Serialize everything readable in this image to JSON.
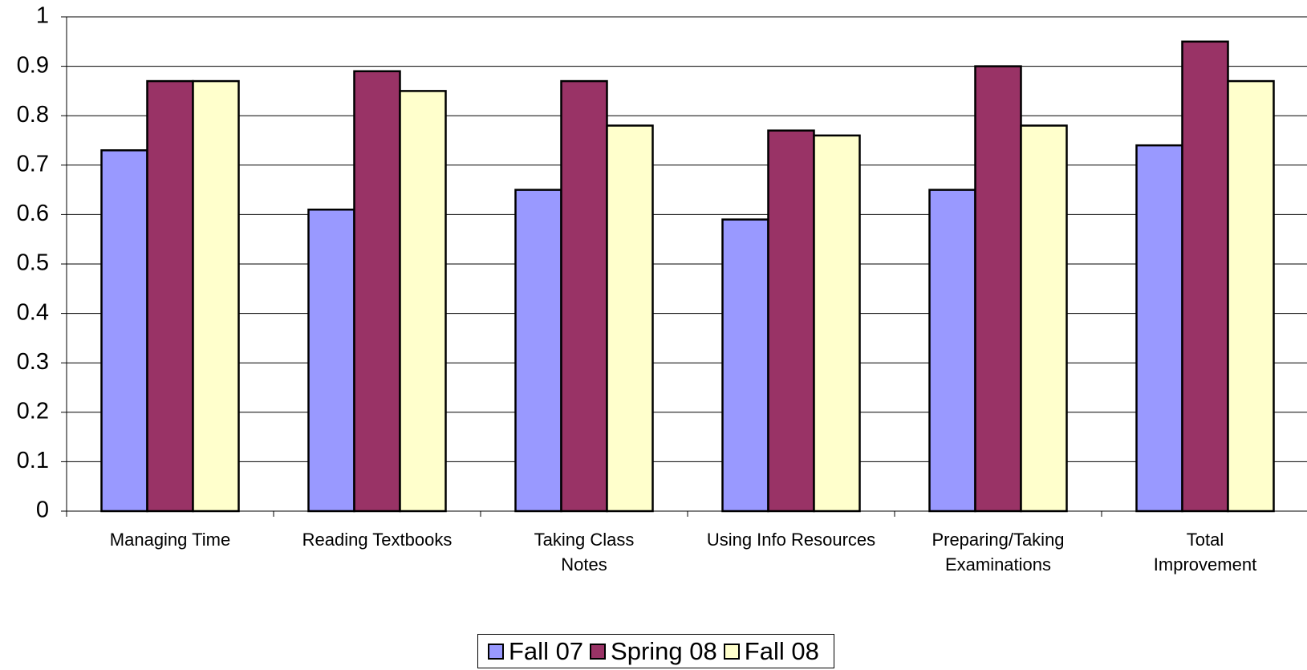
{
  "chart_data": {
    "type": "bar",
    "categories": [
      "Managing Time",
      "Reading Textbooks",
      "Taking Class\nNotes",
      "Using Info Resources",
      "Preparing/Taking\nExaminations",
      "Total\nImprovement"
    ],
    "series": [
      {
        "name": "Fall 07",
        "color": "#9999ff",
        "values": [
          0.73,
          0.61,
          0.65,
          0.59,
          0.65,
          0.74
        ]
      },
      {
        "name": "Spring 08",
        "color": "#993366",
        "values": [
          0.87,
          0.89,
          0.87,
          0.77,
          0.9,
          0.95
        ]
      },
      {
        "name": "Fall 08",
        "color": "#ffffcc",
        "values": [
          0.87,
          0.85,
          0.78,
          0.76,
          0.78,
          0.87
        ]
      }
    ],
    "ylim": [
      0,
      1
    ],
    "yticks": [
      0,
      0.1,
      0.2,
      0.3,
      0.4,
      0.5,
      0.6,
      0.7,
      0.8,
      0.9,
      1
    ],
    "grid": true,
    "legend": "bottom"
  }
}
